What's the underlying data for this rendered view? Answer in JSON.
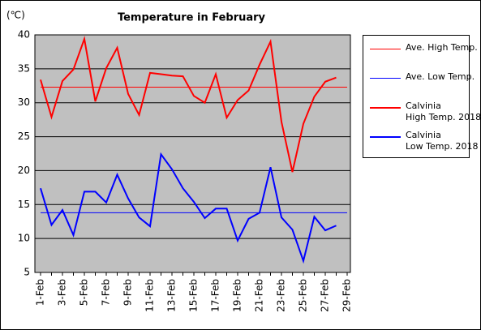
{
  "chart_data": {
    "type": "line",
    "title": "Temperature in February",
    "y_label": "(℃)",
    "categories": [
      "1-Feb",
      null,
      "3-Feb",
      null,
      "5-Feb",
      null,
      "7-Feb",
      null,
      "9-Feb",
      null,
      "11-Feb",
      null,
      "13-Feb",
      null,
      "15-Feb",
      null,
      "17-Feb",
      null,
      "19-Feb",
      null,
      "21-Feb",
      null,
      "23-Feb",
      null,
      "25-Feb",
      null,
      "27-Feb",
      null,
      "29-Feb"
    ],
    "series": [
      {
        "name": "Ave. High Temp.",
        "color": "#ff0000",
        "width": 1,
        "values": [
          32.3,
          32.3,
          32.3,
          32.3,
          32.3,
          32.3,
          32.3,
          32.3,
          32.3,
          32.3,
          32.3,
          32.3,
          32.3,
          32.3,
          32.3,
          32.3,
          32.3,
          32.3,
          32.3,
          32.3,
          32.3,
          32.3,
          32.3,
          32.3,
          32.3,
          32.3,
          32.3,
          32.3,
          32.3
        ]
      },
      {
        "name": "Ave. Low Temp.",
        "color": "#0000ff",
        "width": 1,
        "values": [
          13.8,
          13.8,
          13.8,
          13.8,
          13.8,
          13.8,
          13.8,
          13.8,
          13.8,
          13.8,
          13.8,
          13.8,
          13.8,
          13.8,
          13.8,
          13.8,
          13.8,
          13.8,
          13.8,
          13.8,
          13.8,
          13.8,
          13.8,
          13.8,
          13.8,
          13.8,
          13.8,
          13.8,
          13.8
        ]
      },
      {
        "name": "Calvinia\nHigh Temp. 2018",
        "color": "#ff0000",
        "width": 2,
        "values": [
          33.4,
          27.9,
          33.2,
          34.9,
          39.4,
          30.2,
          35.1,
          38.1,
          31.3,
          28.2,
          34.4,
          34.2,
          34.0,
          33.9,
          31.0,
          30.0,
          34.2,
          27.8,
          30.4,
          31.8,
          35.6,
          39.0,
          27.2,
          19.8,
          26.9,
          30.9,
          33.1,
          33.7,
          null
        ]
      },
      {
        "name": "Calvinia\nLow Temp. 2018",
        "color": "#0000ff",
        "width": 2,
        "values": [
          17.4,
          12.0,
          14.2,
          10.5,
          16.9,
          16.9,
          15.3,
          19.4,
          15.9,
          13.1,
          11.8,
          22.4,
          20.2,
          17.4,
          15.4,
          13.0,
          14.4,
          14.4,
          9.7,
          12.9,
          13.8,
          20.5,
          13.1,
          11.3,
          6.7,
          13.2,
          11.2,
          11.9,
          null
        ]
      }
    ],
    "ylim": [
      5,
      40
    ],
    "yticks": [
      5,
      10,
      15,
      20,
      25,
      30,
      35,
      40
    ],
    "grid": true
  }
}
